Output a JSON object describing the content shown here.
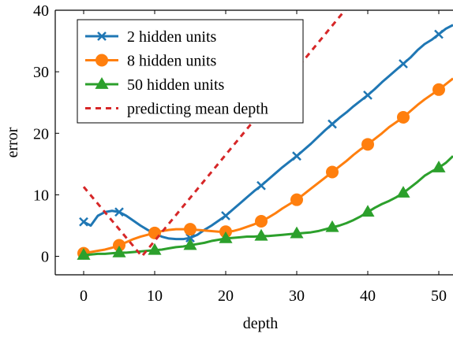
{
  "chart_data": {
    "type": "line",
    "xlabel": "depth",
    "ylabel": "error",
    "xlim": [
      -4,
      52
    ],
    "ylim": [
      -3,
      40
    ],
    "xticks": [
      0,
      10,
      20,
      30,
      40,
      50
    ],
    "yticks": [
      0,
      10,
      20,
      30,
      40
    ],
    "xtick_labels": [
      "0",
      "10",
      "20",
      "30",
      "40",
      "50"
    ],
    "ytick_labels": [
      "0",
      "10",
      "20",
      "30",
      "40"
    ],
    "grid": false,
    "legend_position": "top-left",
    "series": [
      {
        "name": "2 hidden units",
        "color": "#1f77b4",
        "marker": "x",
        "x": [
          0,
          1,
          2,
          3,
          4,
          5,
          6,
          7,
          8,
          9,
          10,
          11,
          12,
          13,
          14,
          15,
          16,
          17,
          18,
          19,
          20,
          21,
          22,
          23,
          24,
          25,
          26,
          27,
          28,
          29,
          30,
          31,
          32,
          33,
          34,
          35,
          36,
          37,
          38,
          39,
          40,
          41,
          42,
          43,
          44,
          45,
          46,
          47,
          48,
          49,
          50,
          51,
          52
        ],
        "y": [
          5.6,
          5.0,
          6.6,
          7.2,
          7.4,
          7.2,
          6.6,
          5.8,
          5.0,
          4.3,
          3.7,
          3.2,
          2.9,
          2.8,
          2.8,
          3.0,
          3.5,
          4.3,
          5.0,
          5.8,
          6.6,
          7.6,
          8.6,
          9.6,
          10.6,
          11.5,
          12.5,
          13.5,
          14.5,
          15.4,
          16.3,
          17.3,
          18.3,
          19.4,
          20.5,
          21.5,
          22.5,
          23.4,
          24.4,
          25.3,
          26.2,
          27.2,
          28.3,
          29.3,
          30.3,
          31.3,
          32.3,
          33.5,
          34.5,
          35.2,
          36.1,
          37.0,
          37.6
        ],
        "marker_every": 5
      },
      {
        "name": "8 hidden units",
        "color": "#ff7f0e",
        "marker": "circle",
        "x": [
          0,
          1,
          2,
          3,
          4,
          5,
          6,
          7,
          8,
          9,
          10,
          11,
          12,
          13,
          14,
          15,
          16,
          17,
          18,
          19,
          20,
          21,
          22,
          23,
          24,
          25,
          26,
          27,
          28,
          29,
          30,
          31,
          32,
          33,
          34,
          35,
          36,
          37,
          38,
          39,
          40,
          41,
          42,
          43,
          44,
          45,
          46,
          47,
          48,
          49,
          50,
          51,
          52
        ],
        "y": [
          0.5,
          0.7,
          0.9,
          1.1,
          1.4,
          1.8,
          2.3,
          2.8,
          3.2,
          3.5,
          3.8,
          4.1,
          4.3,
          4.4,
          4.4,
          4.4,
          4.3,
          4.2,
          4.1,
          4.0,
          4.0,
          4.1,
          4.4,
          4.8,
          5.2,
          5.7,
          6.3,
          7.0,
          7.8,
          8.5,
          9.2,
          10.1,
          11.0,
          11.9,
          12.8,
          13.7,
          14.6,
          15.5,
          16.5,
          17.4,
          18.2,
          19.1,
          20.0,
          21.0,
          21.8,
          22.6,
          23.6,
          24.6,
          25.5,
          26.3,
          27.1,
          28.0,
          28.9
        ],
        "marker_every": 5
      },
      {
        "name": "50 hidden units",
        "color": "#2ca02c",
        "marker": "triangle",
        "x": [
          0,
          1,
          2,
          3,
          4,
          5,
          6,
          7,
          8,
          9,
          10,
          11,
          12,
          13,
          14,
          15,
          16,
          17,
          18,
          19,
          20,
          21,
          22,
          23,
          24,
          25,
          26,
          27,
          28,
          29,
          30,
          31,
          32,
          33,
          34,
          35,
          36,
          37,
          38,
          39,
          40,
          41,
          42,
          43,
          44,
          45,
          46,
          47,
          48,
          49,
          50,
          51,
          52
        ],
        "y": [
          0.2,
          0.3,
          0.4,
          0.4,
          0.5,
          0.6,
          0.6,
          0.7,
          0.8,
          0.9,
          1.0,
          1.1,
          1.3,
          1.5,
          1.6,
          1.8,
          2.0,
          2.2,
          2.5,
          2.7,
          2.9,
          3.0,
          3.1,
          3.2,
          3.2,
          3.3,
          3.3,
          3.4,
          3.5,
          3.6,
          3.7,
          3.8,
          3.9,
          4.1,
          4.4,
          4.7,
          5.0,
          5.4,
          5.9,
          6.5,
          7.2,
          7.9,
          8.5,
          9.0,
          9.6,
          10.3,
          11.2,
          12.1,
          13.1,
          13.8,
          14.4,
          15.2,
          16.3
        ],
        "marker_every": 5
      },
      {
        "name": "predicting mean depth",
        "color": "#d62728",
        "dash": true,
        "x": [
          0,
          8.2,
          37.5
        ],
        "y": [
          11.3,
          0.0,
          41.0
        ]
      }
    ]
  }
}
